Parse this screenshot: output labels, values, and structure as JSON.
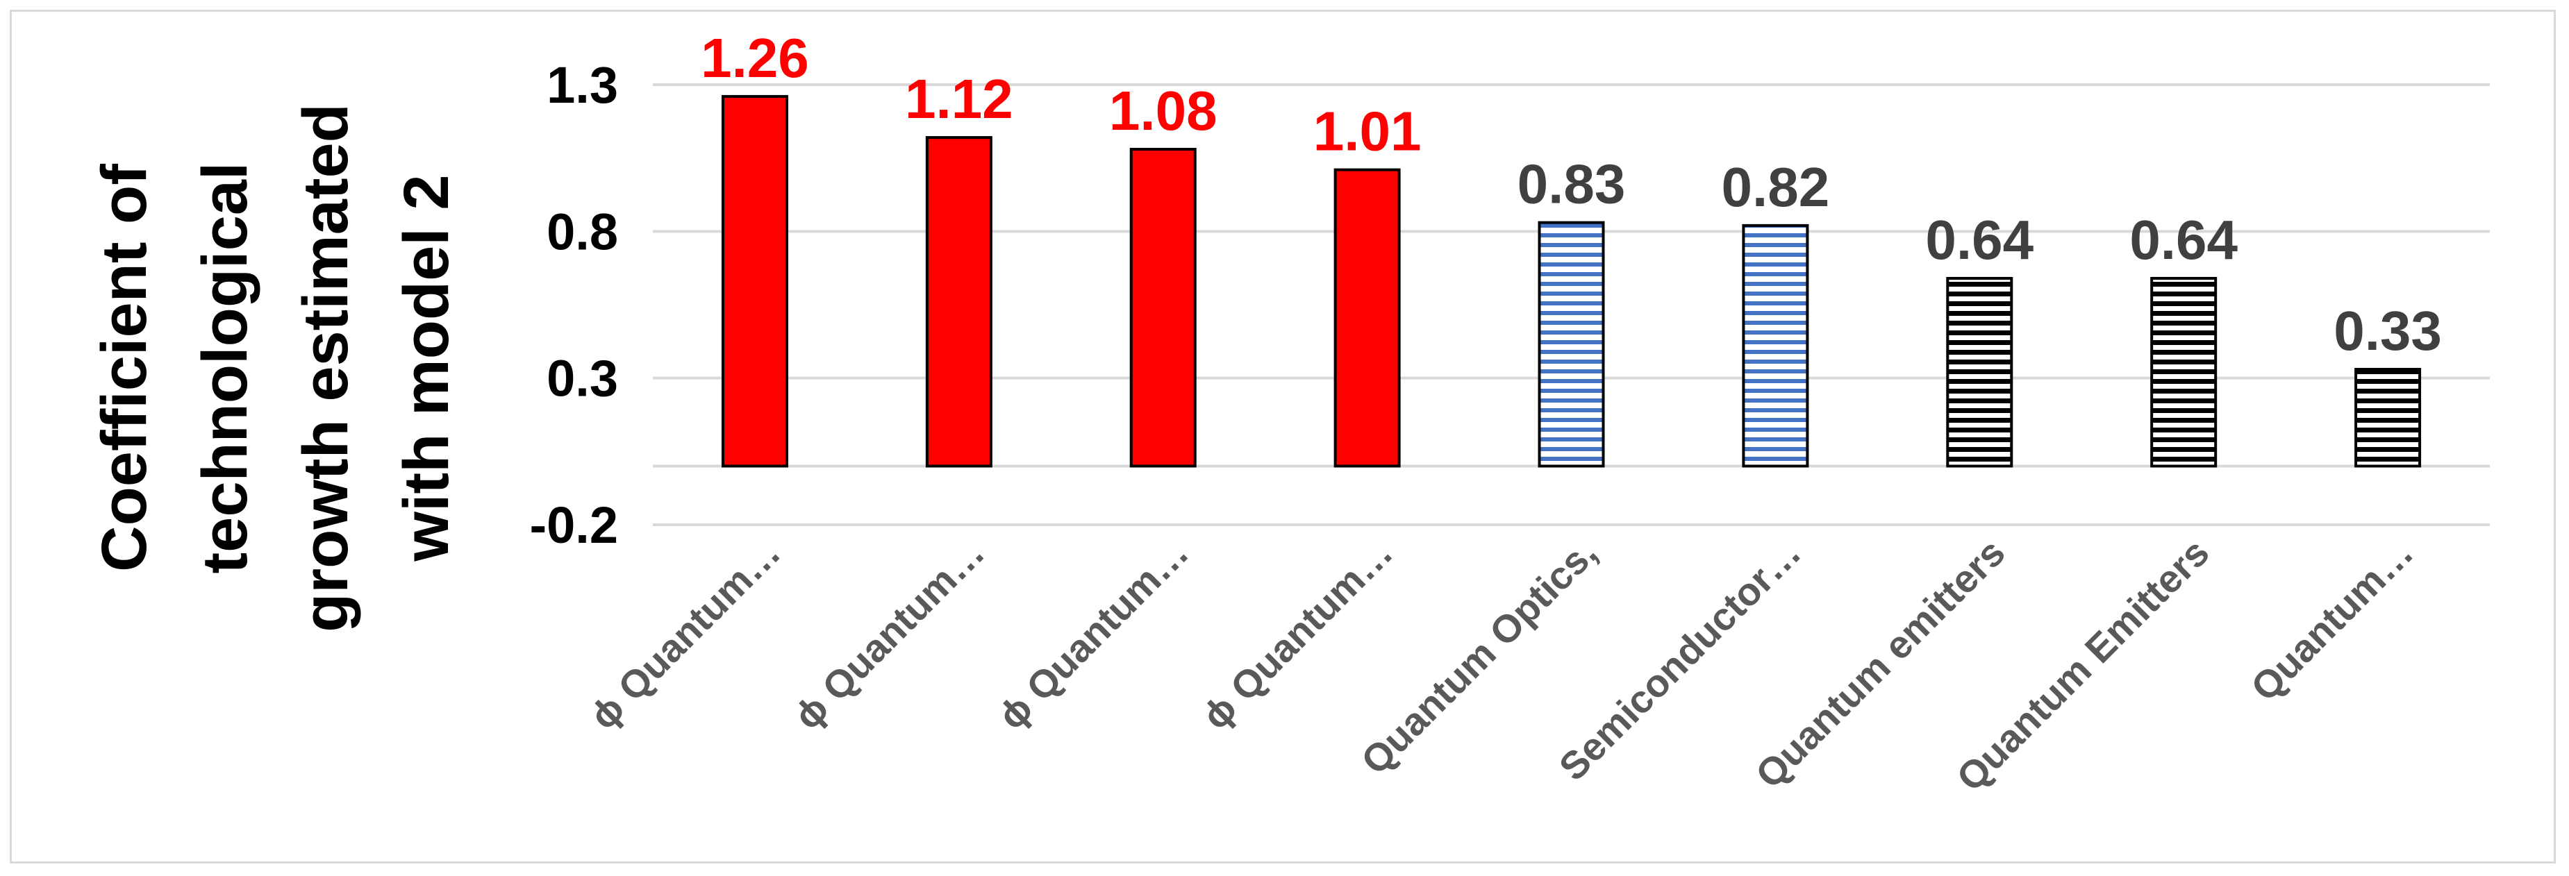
{
  "chart_data": {
    "type": "bar",
    "title": "",
    "xlabel": "",
    "ylabel": [
      "Coefficient of",
      "technological",
      "growth estimated",
      "with model  2"
    ],
    "ylim": [
      -0.2,
      1.3
    ],
    "yticks": [
      "1.3",
      "0.8",
      "0.3",
      "-0.2"
    ],
    "ytick_values": [
      1.3,
      0.8,
      0.3,
      -0.2
    ],
    "grid": true,
    "legend": "none",
    "categories": [
      "ϕ  Quantum…",
      "ϕ  Quantum…",
      "ϕ  Quantum…",
      "ϕ  Quantum…",
      "Quantum Optics,",
      "Semiconductor…",
      "Quantum emitters",
      "Quantum Emitters",
      "Quantum…"
    ],
    "values": [
      1.26,
      1.12,
      1.08,
      1.01,
      0.83,
      0.82,
      0.64,
      0.64,
      0.33
    ],
    "value_labels": [
      "1.26",
      "1.12",
      "1.08",
      "1.01",
      "0.83",
      "0.82",
      "0.64",
      "0.64",
      "0.33"
    ],
    "bar_styles": [
      "solid-red",
      "solid-red",
      "solid-red",
      "solid-red",
      "blue-stripes",
      "blue-stripes",
      "black-stripes",
      "black-stripes",
      "black-stripes"
    ],
    "colors": {
      "red": "#ff0000",
      "blue_stripe": "#4472c4",
      "black_stripe": "#000000",
      "label_red": "#ff0000",
      "label_gray": "#404040",
      "category_text": "#595959",
      "grid": "#d9d9d9"
    }
  }
}
